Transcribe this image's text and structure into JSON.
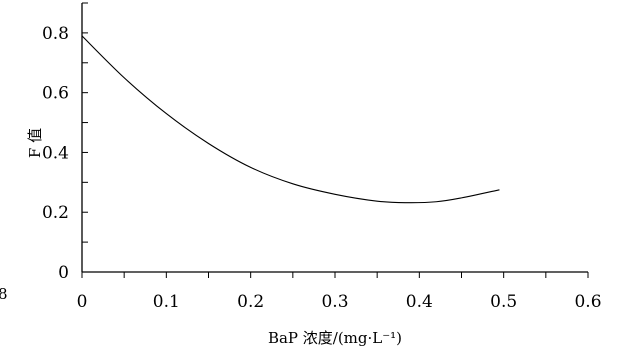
{
  "chart_data": {
    "type": "line",
    "xlabel": "BaP 浓度/(mg·L⁻¹)",
    "ylabel": "F 值",
    "xlim": [
      0,
      0.6
    ],
    "ylim": [
      0,
      0.9
    ],
    "x_ticks": [
      0,
      0.1,
      0.2,
      0.3,
      0.4,
      0.5,
      0.6
    ],
    "x_tick_labels": [
      "0",
      "0.1",
      "0.2",
      "0.3",
      "0.4",
      "0.5",
      "0.6"
    ],
    "y_ticks": [
      0,
      0.2,
      0.4,
      0.6,
      0.8
    ],
    "y_tick_labels": [
      "0",
      "0.2",
      "0.4",
      "0.6",
      "0.8"
    ],
    "grid": false,
    "legend": "none",
    "series": [
      {
        "x": [
          0,
          0.05,
          0.1,
          0.15,
          0.2,
          0.25,
          0.3,
          0.35,
          0.385,
          0.42,
          0.45,
          0.495
        ],
        "values": [
          0.79,
          0.65,
          0.53,
          0.43,
          0.35,
          0.295,
          0.26,
          0.237,
          0.232,
          0.235,
          0.248,
          0.275
        ]
      }
    ]
  },
  "edge_mark": "8"
}
